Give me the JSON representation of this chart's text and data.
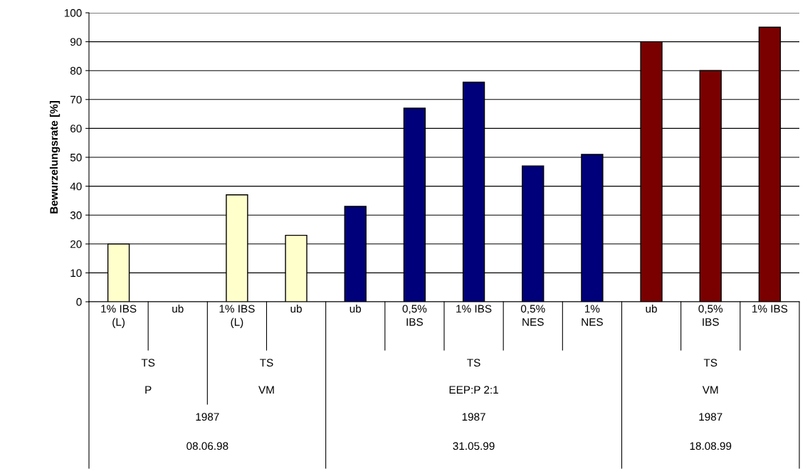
{
  "chart_data": {
    "type": "bar",
    "ylabel": "Bewurzelungsrate [%]",
    "categories": [
      "1% IBS\n(L)",
      "ub",
      "1% IBS\n(L)",
      "ub",
      "ub",
      "0,5%\nIBS",
      "1% IBS",
      "0,5%\nNES",
      "1%\nNES",
      "ub",
      "0,5%\nIBS",
      "1% IBS"
    ],
    "values": [
      20,
      null,
      37,
      23,
      33,
      67,
      76,
      47,
      51,
      90,
      80,
      95
    ],
    "colors": [
      "#ffffcc",
      null,
      "#ffffcc",
      "#ffffcc",
      "#00007a",
      "#00007a",
      "#00007a",
      "#00007a",
      "#00007a",
      "#7a0000",
      "#7a0000",
      "#7a0000"
    ],
    "ylim": [
      0,
      100
    ],
    "yticks": [
      0,
      10,
      20,
      30,
      40,
      50,
      60,
      70,
      80,
      90,
      100
    ],
    "grid": "y",
    "legend": false,
    "annotations": [
      "TS",
      "TS",
      "TS",
      "TS",
      "P",
      "VM",
      "EEP:P 2:1",
      "VM",
      "1987",
      "1987",
      "1987",
      "08.06.98",
      "31.05.99",
      "18.08.99"
    ]
  }
}
